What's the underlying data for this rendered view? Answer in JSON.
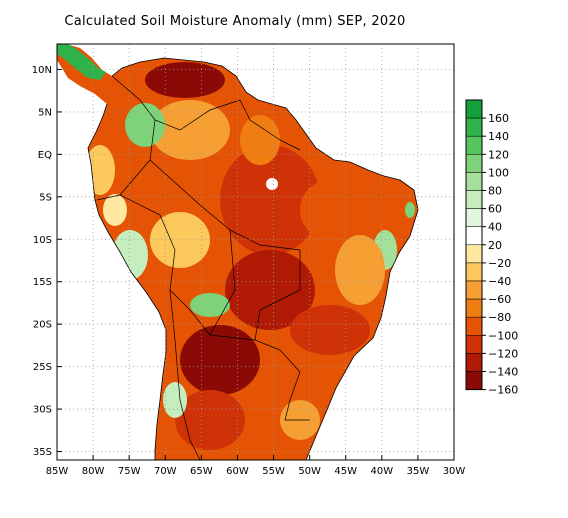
{
  "title": "Calculated Soil Moisture Anomaly (mm) SEP, 2020",
  "lat_labels": [
    "10N",
    "5N",
    "EQ",
    "5S",
    "10S",
    "15S",
    "20S",
    "25S",
    "30S",
    "35S"
  ],
  "lat_values": [
    10,
    5,
    0,
    -5,
    -10,
    -15,
    -20,
    -25,
    -30,
    -35
  ],
  "lon_labels": [
    "85W",
    "80W",
    "75W",
    "70W",
    "65W",
    "60W",
    "55W",
    "50W",
    "45W",
    "40W",
    "35W",
    "30W"
  ],
  "lon_values": [
    -85,
    -80,
    -75,
    -70,
    -65,
    -60,
    -55,
    -50,
    -45,
    -40,
    -35,
    -30
  ],
  "extent": {
    "lon_min": -85,
    "lon_max": -30,
    "lat_min": -36,
    "lat_max": 13
  },
  "legend": {
    "labels": [
      "160",
      "140",
      "120",
      "100",
      "80",
      "60",
      "40",
      "20",
      "−20",
      "−40",
      "−60",
      "−80",
      "−100",
      "−120",
      "−140",
      "−160"
    ],
    "colors": [
      "#12a03a",
      "#2fb24a",
      "#57c45e",
      "#7dd27a",
      "#a3e09a",
      "#c6edbd",
      "#e3f6de",
      "#ffffff",
      "#ffe9a0",
      "#fbc95c",
      "#f6a033",
      "#f07d12",
      "#e55305",
      "#cf3206",
      "#b01a05",
      "#8c0a05"
    ]
  },
  "colors": {
    "ocean": "#ffffff",
    "border": "#000000",
    "grid": "#9a9a9a"
  }
}
